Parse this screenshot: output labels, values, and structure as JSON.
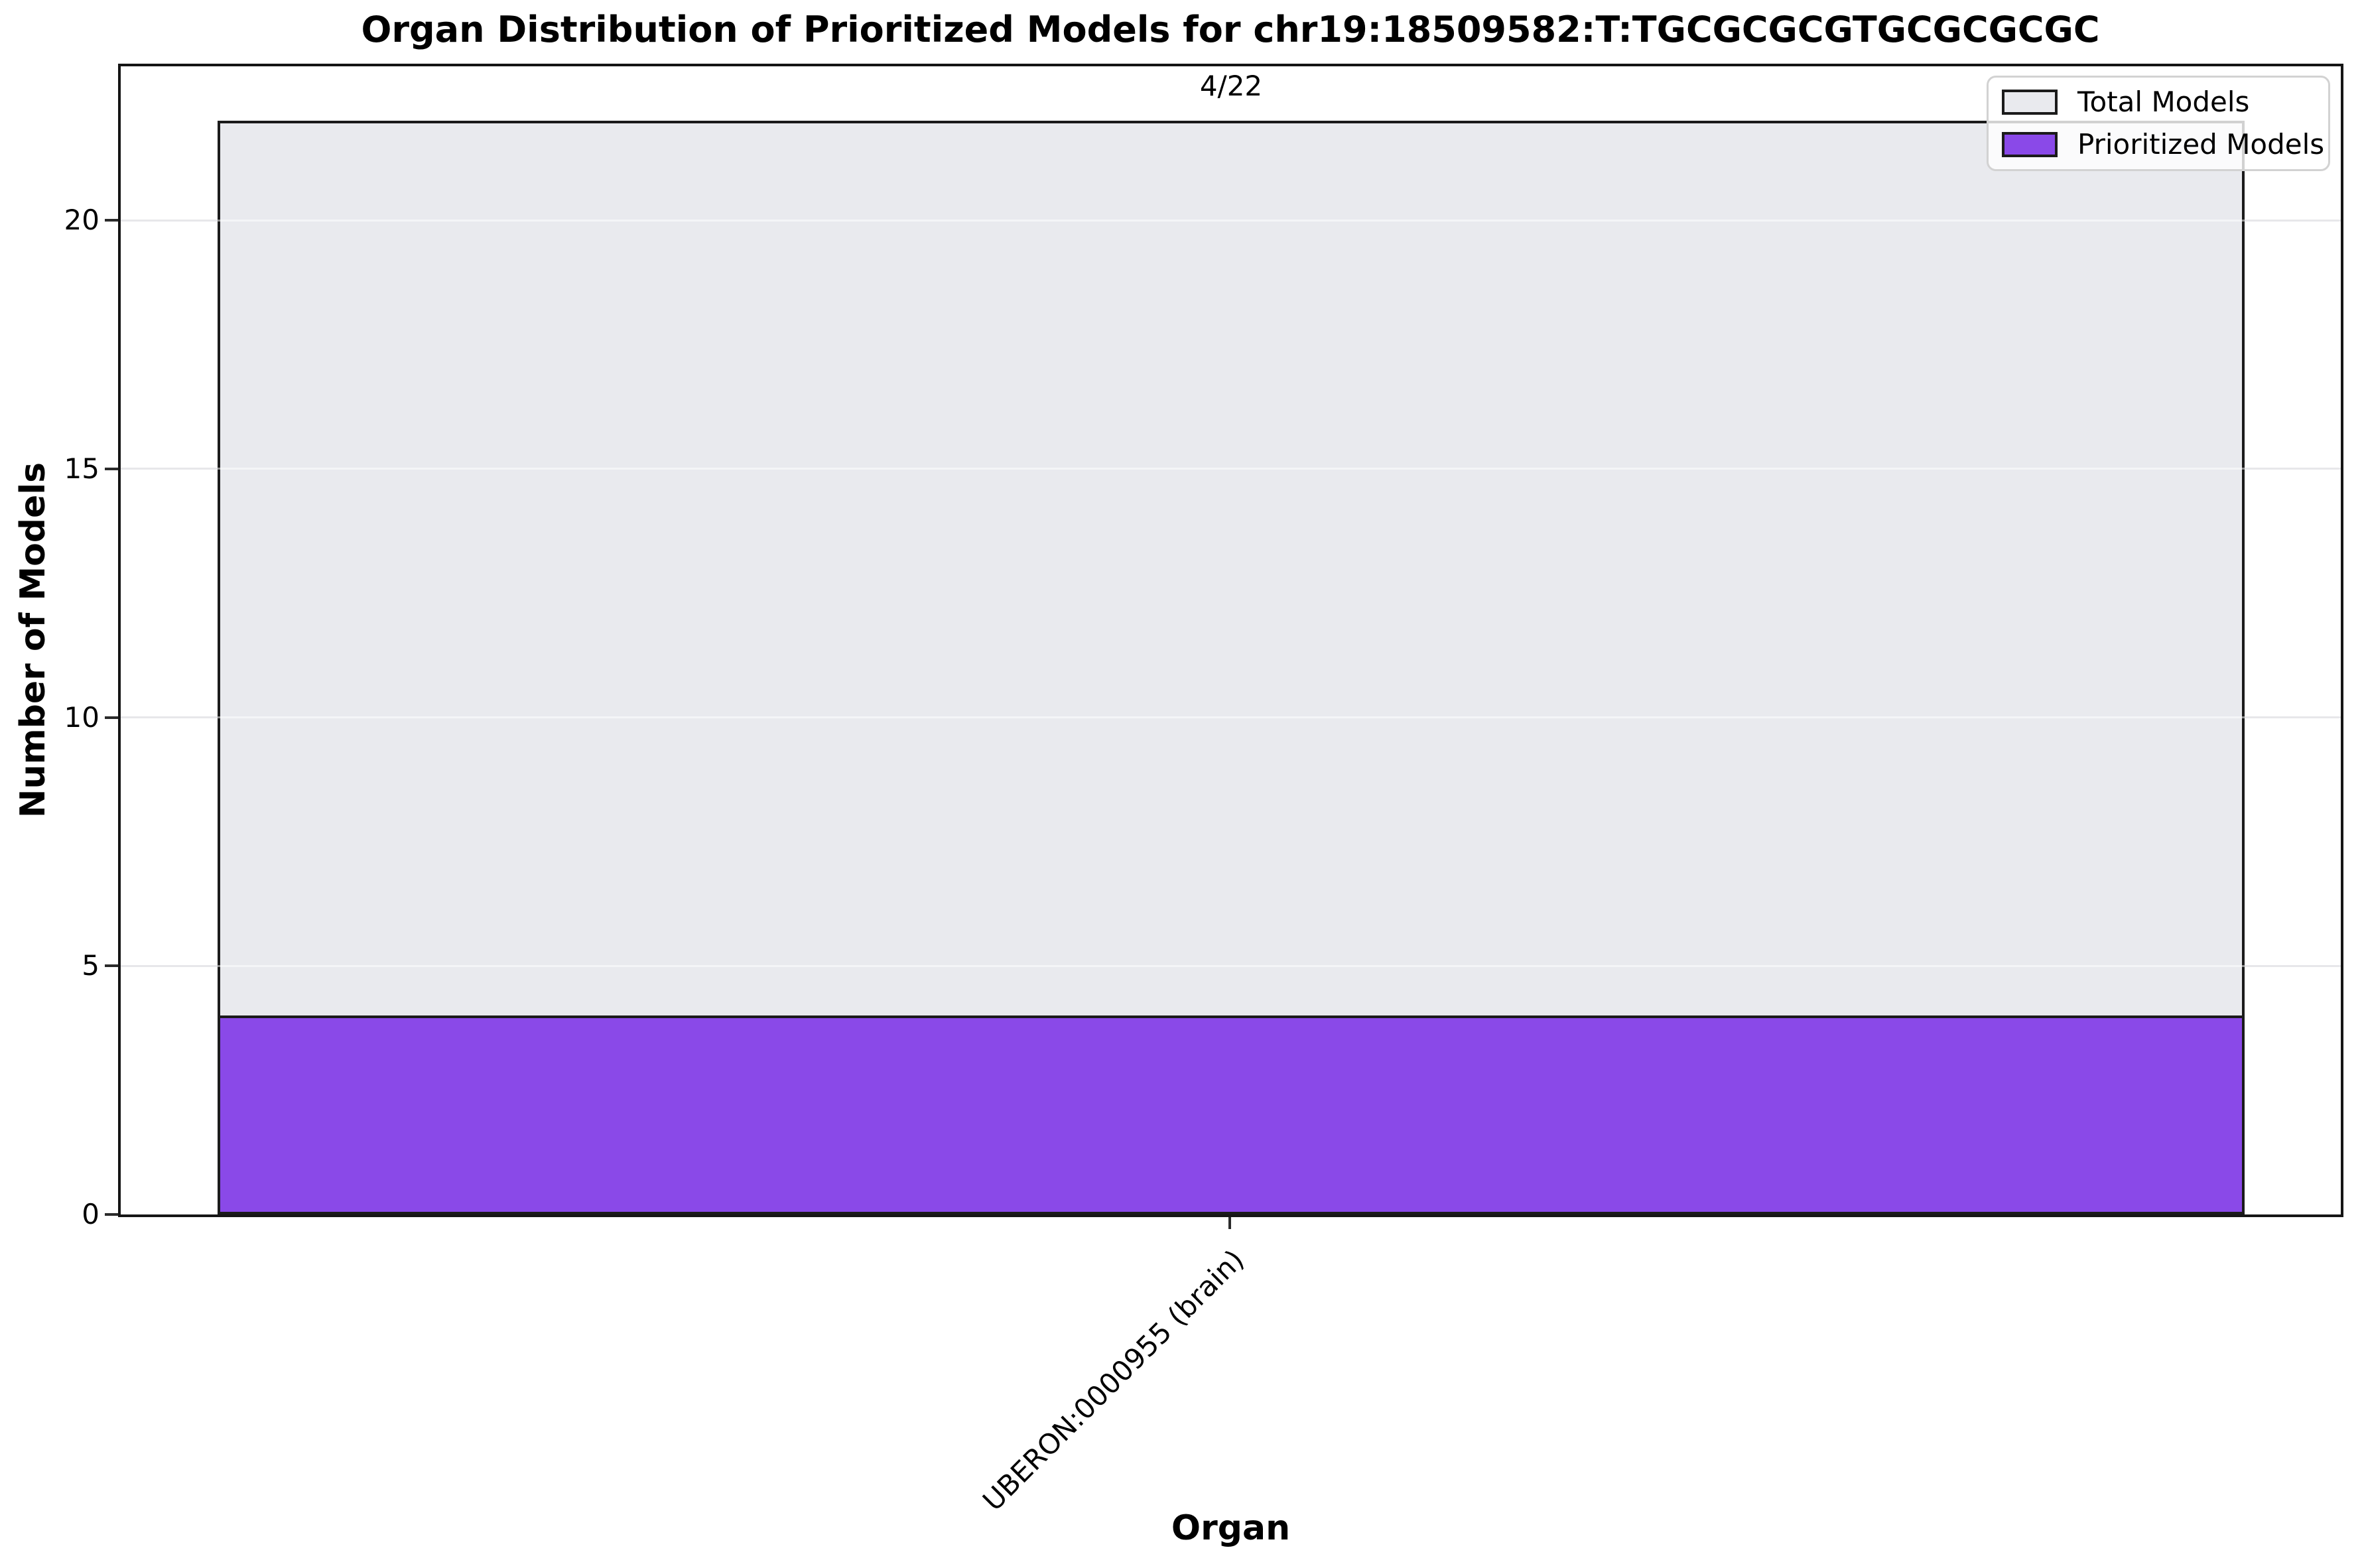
{
  "chart_data": {
    "type": "bar",
    "title": "Organ Distribution of Prioritized Models for chr19:18509582:T:TGCGCGCGTGCGCGCGC",
    "xlabel": "Organ",
    "ylabel": "Number of Models",
    "categories": [
      "UBERON:0000955 (brain)"
    ],
    "series": [
      {
        "name": "Total Models",
        "values": [
          22
        ],
        "color": "#e9eaee"
      },
      {
        "name": "Prioritized Models",
        "values": [
          4
        ],
        "color": "#8a49e8"
      }
    ],
    "bar_labels": [
      "4/22"
    ],
    "ylim": [
      0,
      23.1
    ],
    "yticks": [
      0,
      5,
      10,
      15,
      20
    ],
    "grid": "y",
    "legend_position": "upper-right",
    "colors": {
      "bar_edge": "#1b1b1b",
      "grid": "#e7e7ea",
      "spine": "#151515"
    }
  }
}
